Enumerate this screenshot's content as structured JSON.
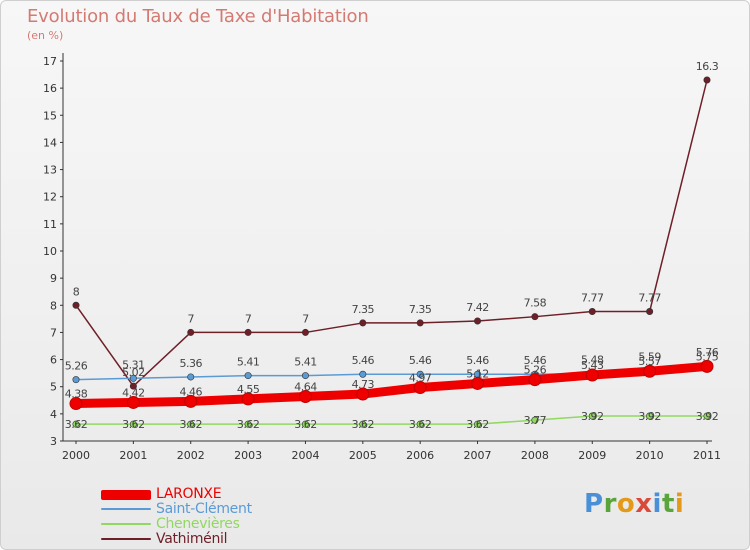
{
  "title": "Evolution du Taux de Taxe d'Habitation",
  "subtitle": "(en %)",
  "logo": {
    "letters": [
      "P",
      "r",
      "o",
      "x",
      "i",
      "t",
      "i"
    ],
    "colors": [
      "#4a90d9",
      "#5aa43c",
      "#e39a1a",
      "#d94a3a",
      "#4a90d9",
      "#5aa43c",
      "#e39a1a"
    ]
  },
  "chart_data": {
    "type": "line",
    "x": [
      "2000",
      "2001",
      "2002",
      "2003",
      "2004",
      "2005",
      "2006",
      "2007",
      "2008",
      "2009",
      "2010",
      "2011"
    ],
    "ylim": [
      3,
      17
    ],
    "yticks": [
      "3",
      "4",
      "5",
      "6",
      "7",
      "8",
      "9",
      "10",
      "11",
      "12",
      "13",
      "14",
      "15",
      "16",
      "17"
    ],
    "grid": false,
    "legend": "bottom-left",
    "series": [
      {
        "name": "Vathiménil",
        "color": "#6e1f28",
        "values": [
          8,
          5.02,
          7,
          7,
          7,
          7.35,
          7.35,
          7.42,
          7.58,
          7.77,
          7.77,
          16.3
        ],
        "labels": [
          "8",
          "5.02",
          "7",
          "7",
          "7",
          "7.35",
          "7.35",
          "7.42",
          "7.58",
          "7.77",
          "7.77",
          "16.3"
        ]
      },
      {
        "name": "Saint-Clément",
        "color": "#5b9bd5",
        "values": [
          5.26,
          5.31,
          5.36,
          5.41,
          5.41,
          5.46,
          5.46,
          5.46,
          5.46,
          5.48,
          5.59,
          5.76
        ],
        "labels": [
          "5.26",
          "5.31",
          "5.36",
          "5.41",
          "5.41",
          "5.46",
          "5.46",
          "5.46",
          "5.46",
          "5.48",
          "5.59",
          "5.76"
        ]
      },
      {
        "name": "Chenevières",
        "color": "#90d860",
        "values": [
          3.62,
          3.62,
          3.62,
          3.62,
          3.62,
          3.62,
          3.62,
          3.62,
          3.77,
          3.92,
          3.92,
          3.92
        ],
        "labels": [
          "3.62",
          "3.62",
          "3.62",
          "3.62",
          "3.62",
          "3.62",
          "3.62",
          "3.62",
          "3.77",
          "3.92",
          "3.92",
          "3.92"
        ]
      },
      {
        "name": "LARONXE",
        "color": "#ee0000",
        "values": [
          4.38,
          4.42,
          4.46,
          4.55,
          4.64,
          4.73,
          4.97,
          5.12,
          5.26,
          5.43,
          5.57,
          5.75
        ],
        "labels": [
          "4.38",
          "4.42",
          "4.46",
          "4.55",
          "4.64",
          "4.73",
          "4.97",
          "5.12",
          "5.26",
          "5.43",
          "5.57",
          "5.75"
        ]
      }
    ]
  }
}
